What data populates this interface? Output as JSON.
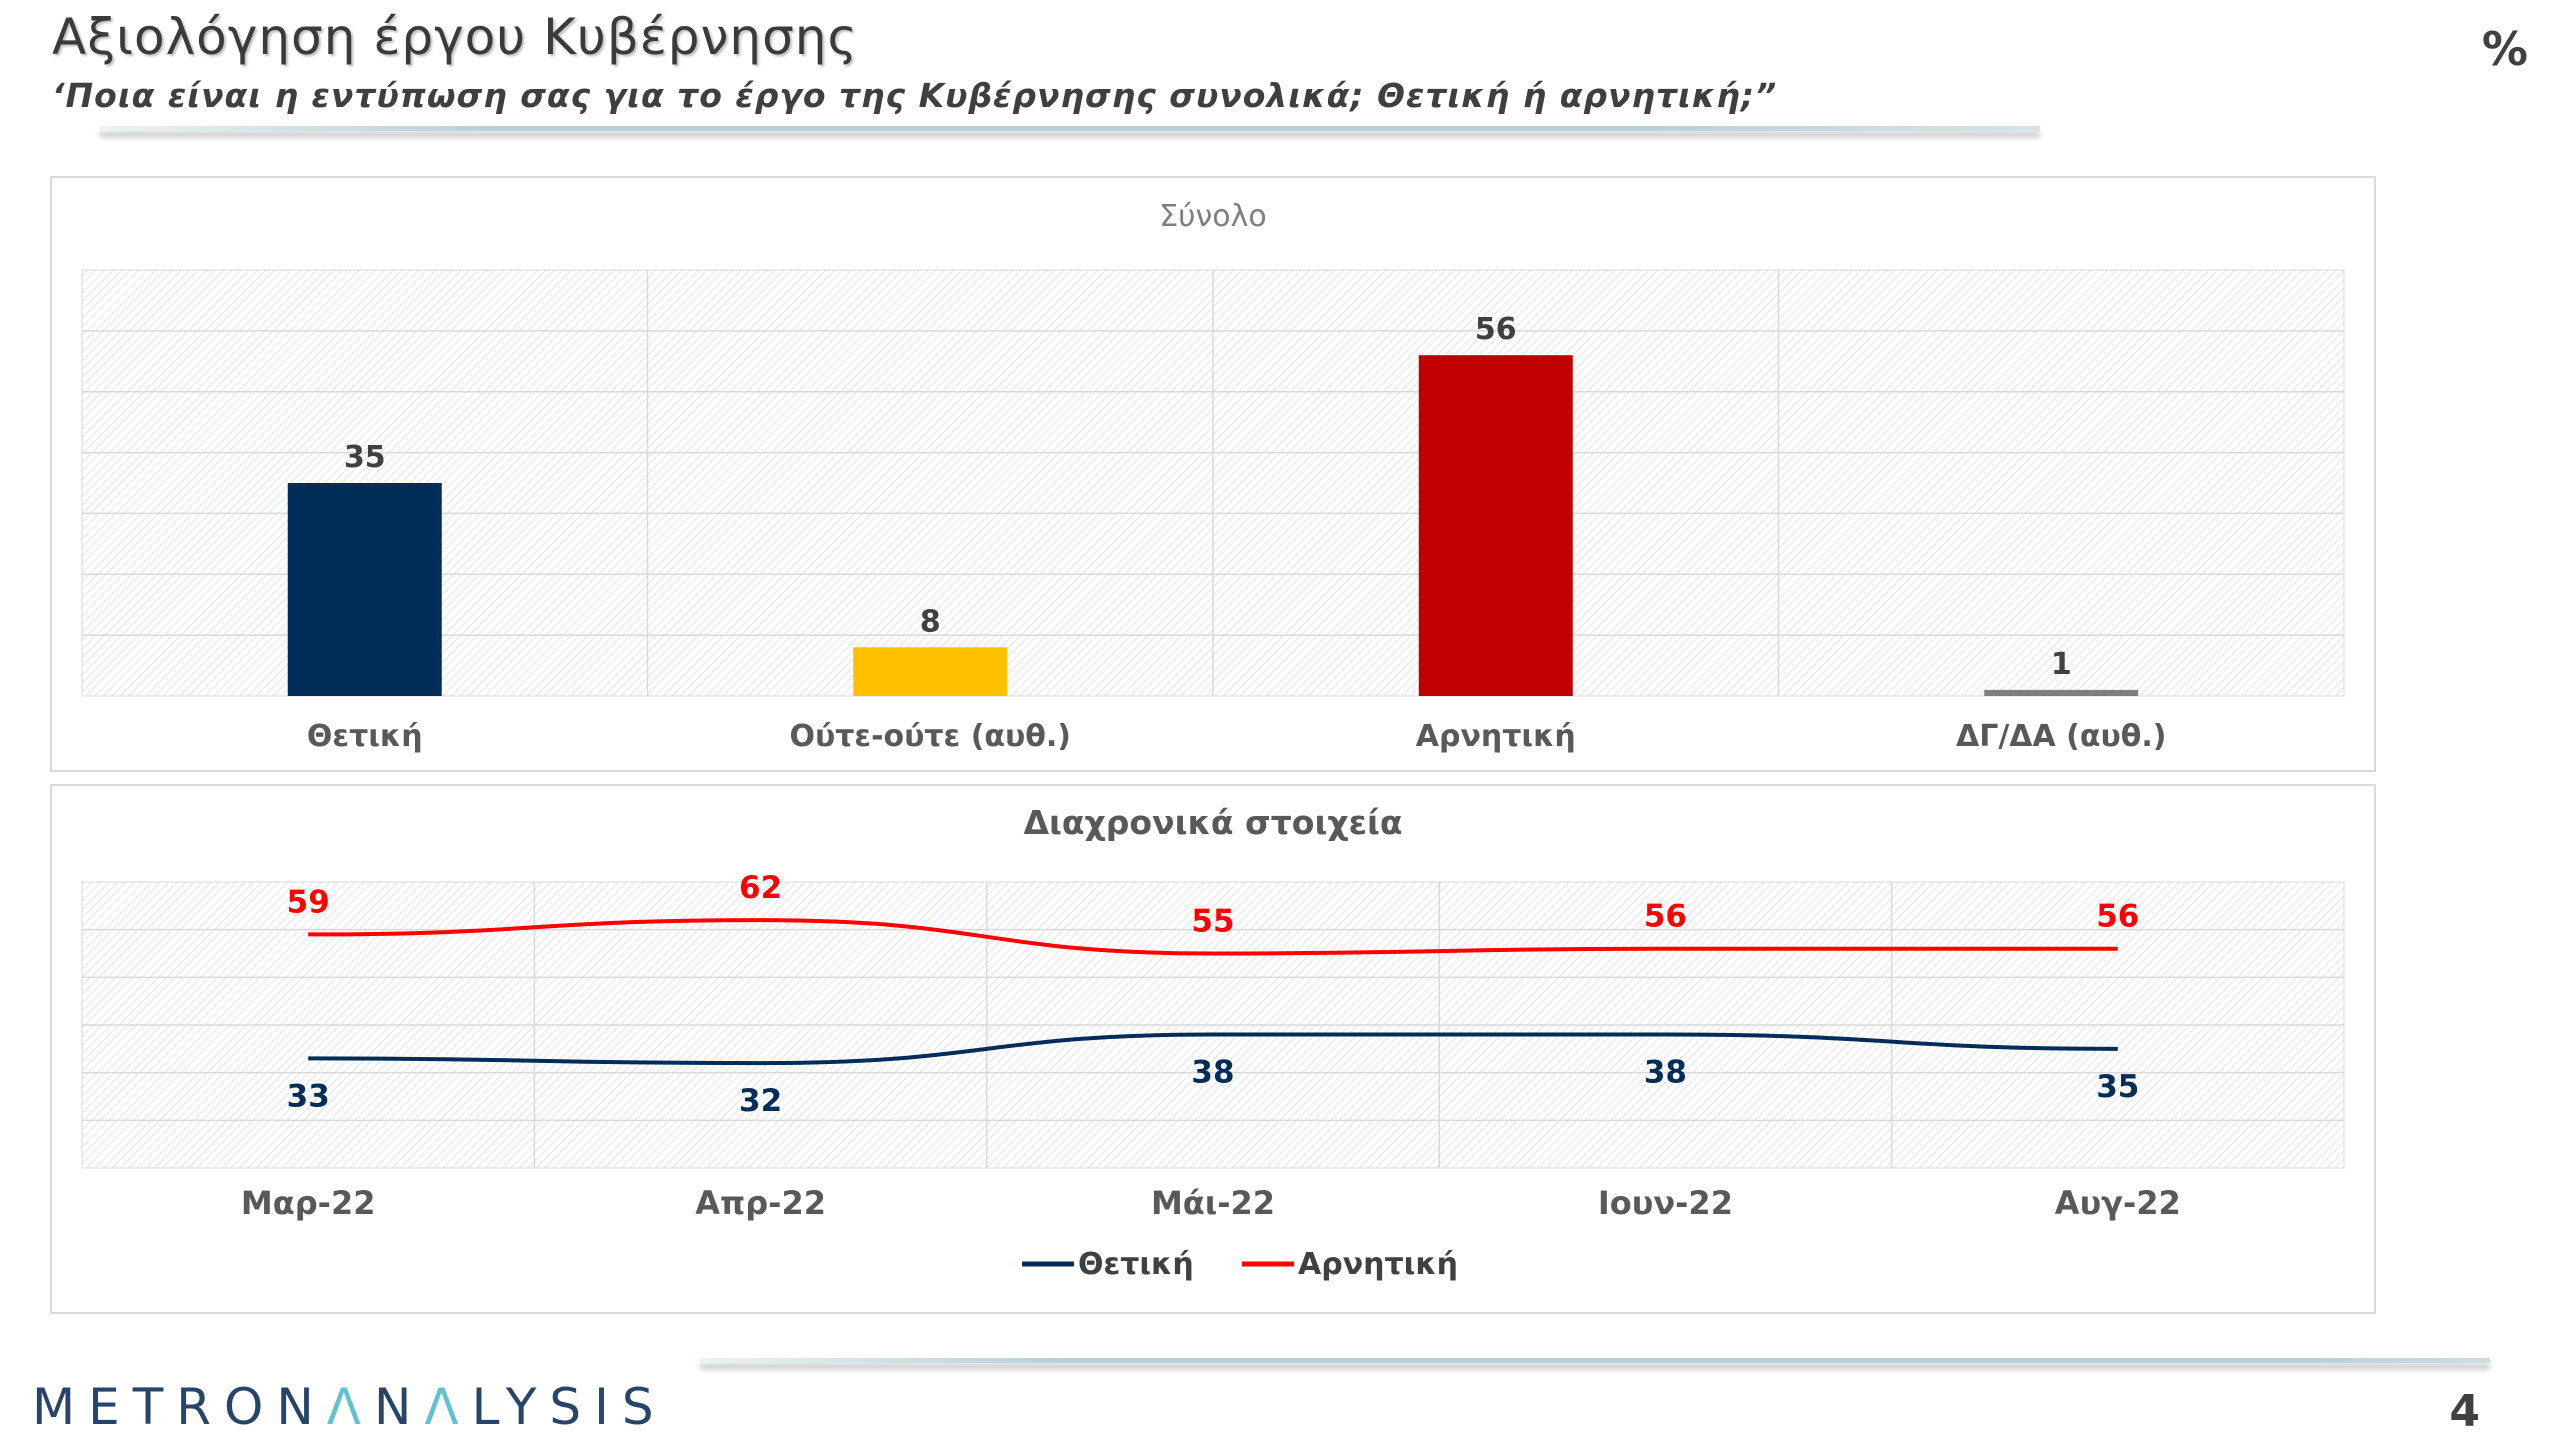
{
  "header": {
    "title": "Αξιολόγηση έργου Κυβέρνησης",
    "subtitle": "‘Ποια είναι η εντύπωση σας για το έργο της Κυβέρνησης συνολικά; Θετική ή αρνητική;”",
    "percent_label": "%"
  },
  "footer": {
    "logo_text": "METRONANALYSIS",
    "page_number": "4"
  },
  "colors": {
    "navy": "#002d57",
    "yellow": "#ffc000",
    "red": "#c00000",
    "grey": "#7f7f7f",
    "line_red": "#ff0000"
  },
  "chart_data": [
    {
      "type": "bar",
      "title": "Σύνολο",
      "categories": [
        "Θετική",
        "Ούτε-ούτε (αυθ.)",
        "Αρνητική",
        "ΔΓ/ΔΑ (αυθ.)"
      ],
      "values": [
        35,
        8,
        56,
        1
      ],
      "colors": [
        "#002d57",
        "#ffc000",
        "#c00000",
        "#7f7f7f"
      ],
      "ylim": [
        0,
        70
      ],
      "grid": true,
      "legend": "none"
    },
    {
      "type": "line",
      "title": "Διαχρονικά στοιχεία",
      "categories": [
        "Μαρ-22",
        "Απρ-22",
        "Μάι-22",
        "Ιουν-22",
        "Αυγ-22"
      ],
      "series": [
        {
          "name": "Θετική",
          "values": [
            33,
            32,
            38,
            38,
            35
          ],
          "color": "#002d57"
        },
        {
          "name": "Αρνητική",
          "values": [
            59,
            62,
            55,
            56,
            56
          ],
          "color": "#ff0000"
        }
      ],
      "ylim": [
        10,
        70
      ],
      "grid": true,
      "legend": "bottom"
    }
  ]
}
